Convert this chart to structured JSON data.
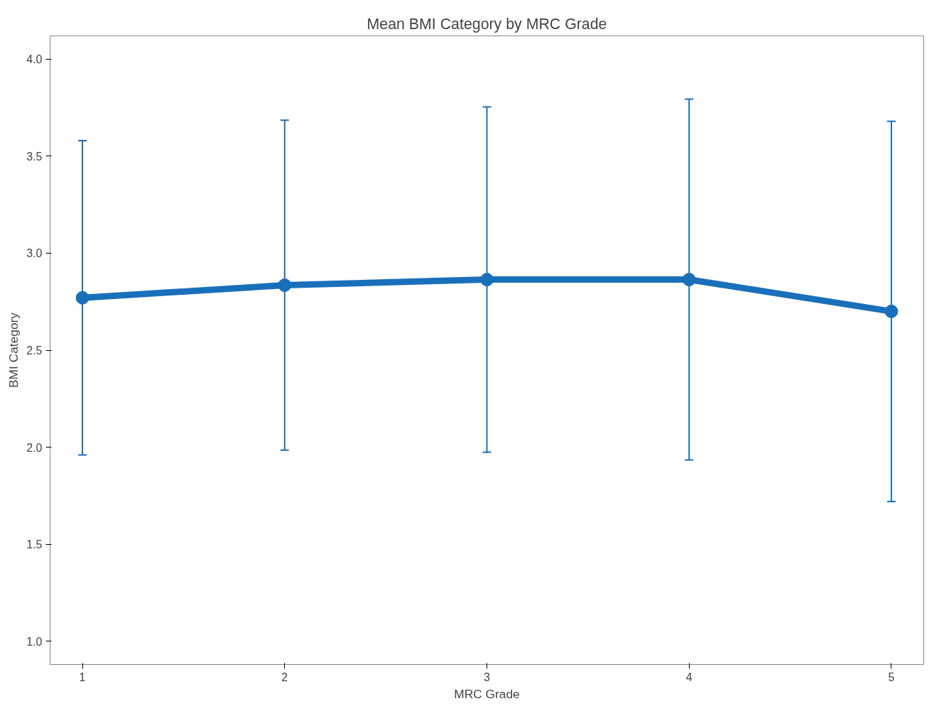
{
  "chart_data": {
    "type": "line",
    "title": "Mean BMI Category by MRC Grade",
    "xlabel": "MRC Grade",
    "ylabel": "BMI Category",
    "x": [
      1,
      2,
      3,
      4,
      5
    ],
    "series": [
      {
        "color": "#1a6fba",
        "values": [
          2.77,
          2.835,
          2.864,
          2.864,
          2.7
        ],
        "errors": [
          0.81,
          0.85,
          0.89,
          0.93,
          0.98
        ]
      }
    ],
    "xlim": [
      0.84,
      5.16
    ],
    "xticks": [
      1,
      2,
      3,
      4,
      5
    ],
    "ylim": [
      0.88,
      4.12
    ],
    "yticks": [
      {
        "value": 1.0,
        "label": "1.0"
      },
      1.5,
      {
        "value": 2.0,
        "label": "2.0"
      },
      2.5,
      {
        "value": 3.0,
        "label": "3.0"
      },
      3.5,
      {
        "value": 4.0,
        "label": "4.0"
      }
    ],
    "grid": false,
    "marker": "circle",
    "line_style": "solid"
  }
}
